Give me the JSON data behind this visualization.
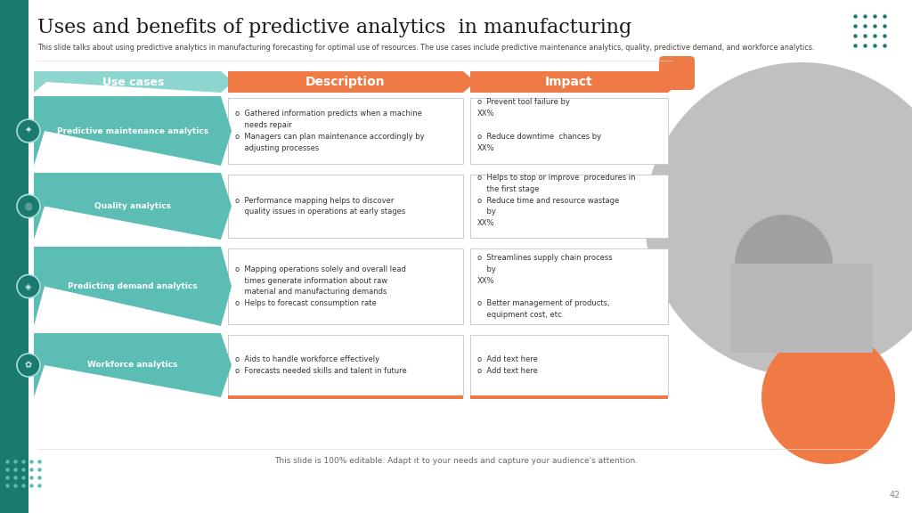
{
  "title": "Uses and benefits of predictive analytics  in manufacturing",
  "subtitle": "This slide talks about using predictive analytics in manufacturing forecasting for optimal use of resources. The use cases include predictive maintenance analytics, quality, predictive demand, and workforce analytics.",
  "footer": "This slide is 100% editable. Adapt it to your needs and capture your audience's attention.",
  "page_num": "42",
  "bg_color": "#ffffff",
  "left_bar_color": "#1a7a6e",
  "teal_color": "#5bbdb3",
  "teal_light": "#8dd6d0",
  "orange_color": "#f07a45",
  "rows": [
    {
      "label": "Predictive maintenance analytics",
      "desc_lines": [
        "o  Gathered information predicts when a machine",
        "    needs repair",
        "o  Managers can plan maintenance accordingly by",
        "    adjusting processes"
      ],
      "impact_lines": [
        "o  Prevent tool failure by ",
        "XX%",
        "",
        "o  Reduce downtime  chances by ",
        "XX%",
        ""
      ]
    },
    {
      "label": "Quality analytics",
      "desc_lines": [
        "o  Performance mapping helps to discover",
        "    quality issues in operations at early stages"
      ],
      "impact_lines": [
        "o  Helps to stop or improve  procedures in",
        "    the first stage",
        "o  Reduce time and resource wastage",
        "    by ",
        "XX%",
        ""
      ]
    },
    {
      "label": "Predicting demand analytics",
      "desc_lines": [
        "o  Mapping operations solely and overall lead",
        "    times generate information about raw",
        "    material and manufacturing demands",
        "o  Helps to forecast consumption rate"
      ],
      "impact_lines": [
        "o  Streamlines supply chain process",
        "    by ",
        "XX%",
        "",
        "o  Better management of products,",
        "    equipment cost, etc."
      ]
    },
    {
      "label": "Workforce analytics",
      "desc_lines": [
        "o  Aids to handle workforce effectively",
        "o  Forecasts needed skills and talent in future"
      ],
      "impact_lines": [
        "o  Add text here",
        "o  Add text here"
      ]
    }
  ],
  "col_headers": [
    "Use cases",
    "Description",
    "Impact"
  ],
  "dot_color_tr": "#1a7a6e",
  "dot_color_bl": "#5bbdb3"
}
